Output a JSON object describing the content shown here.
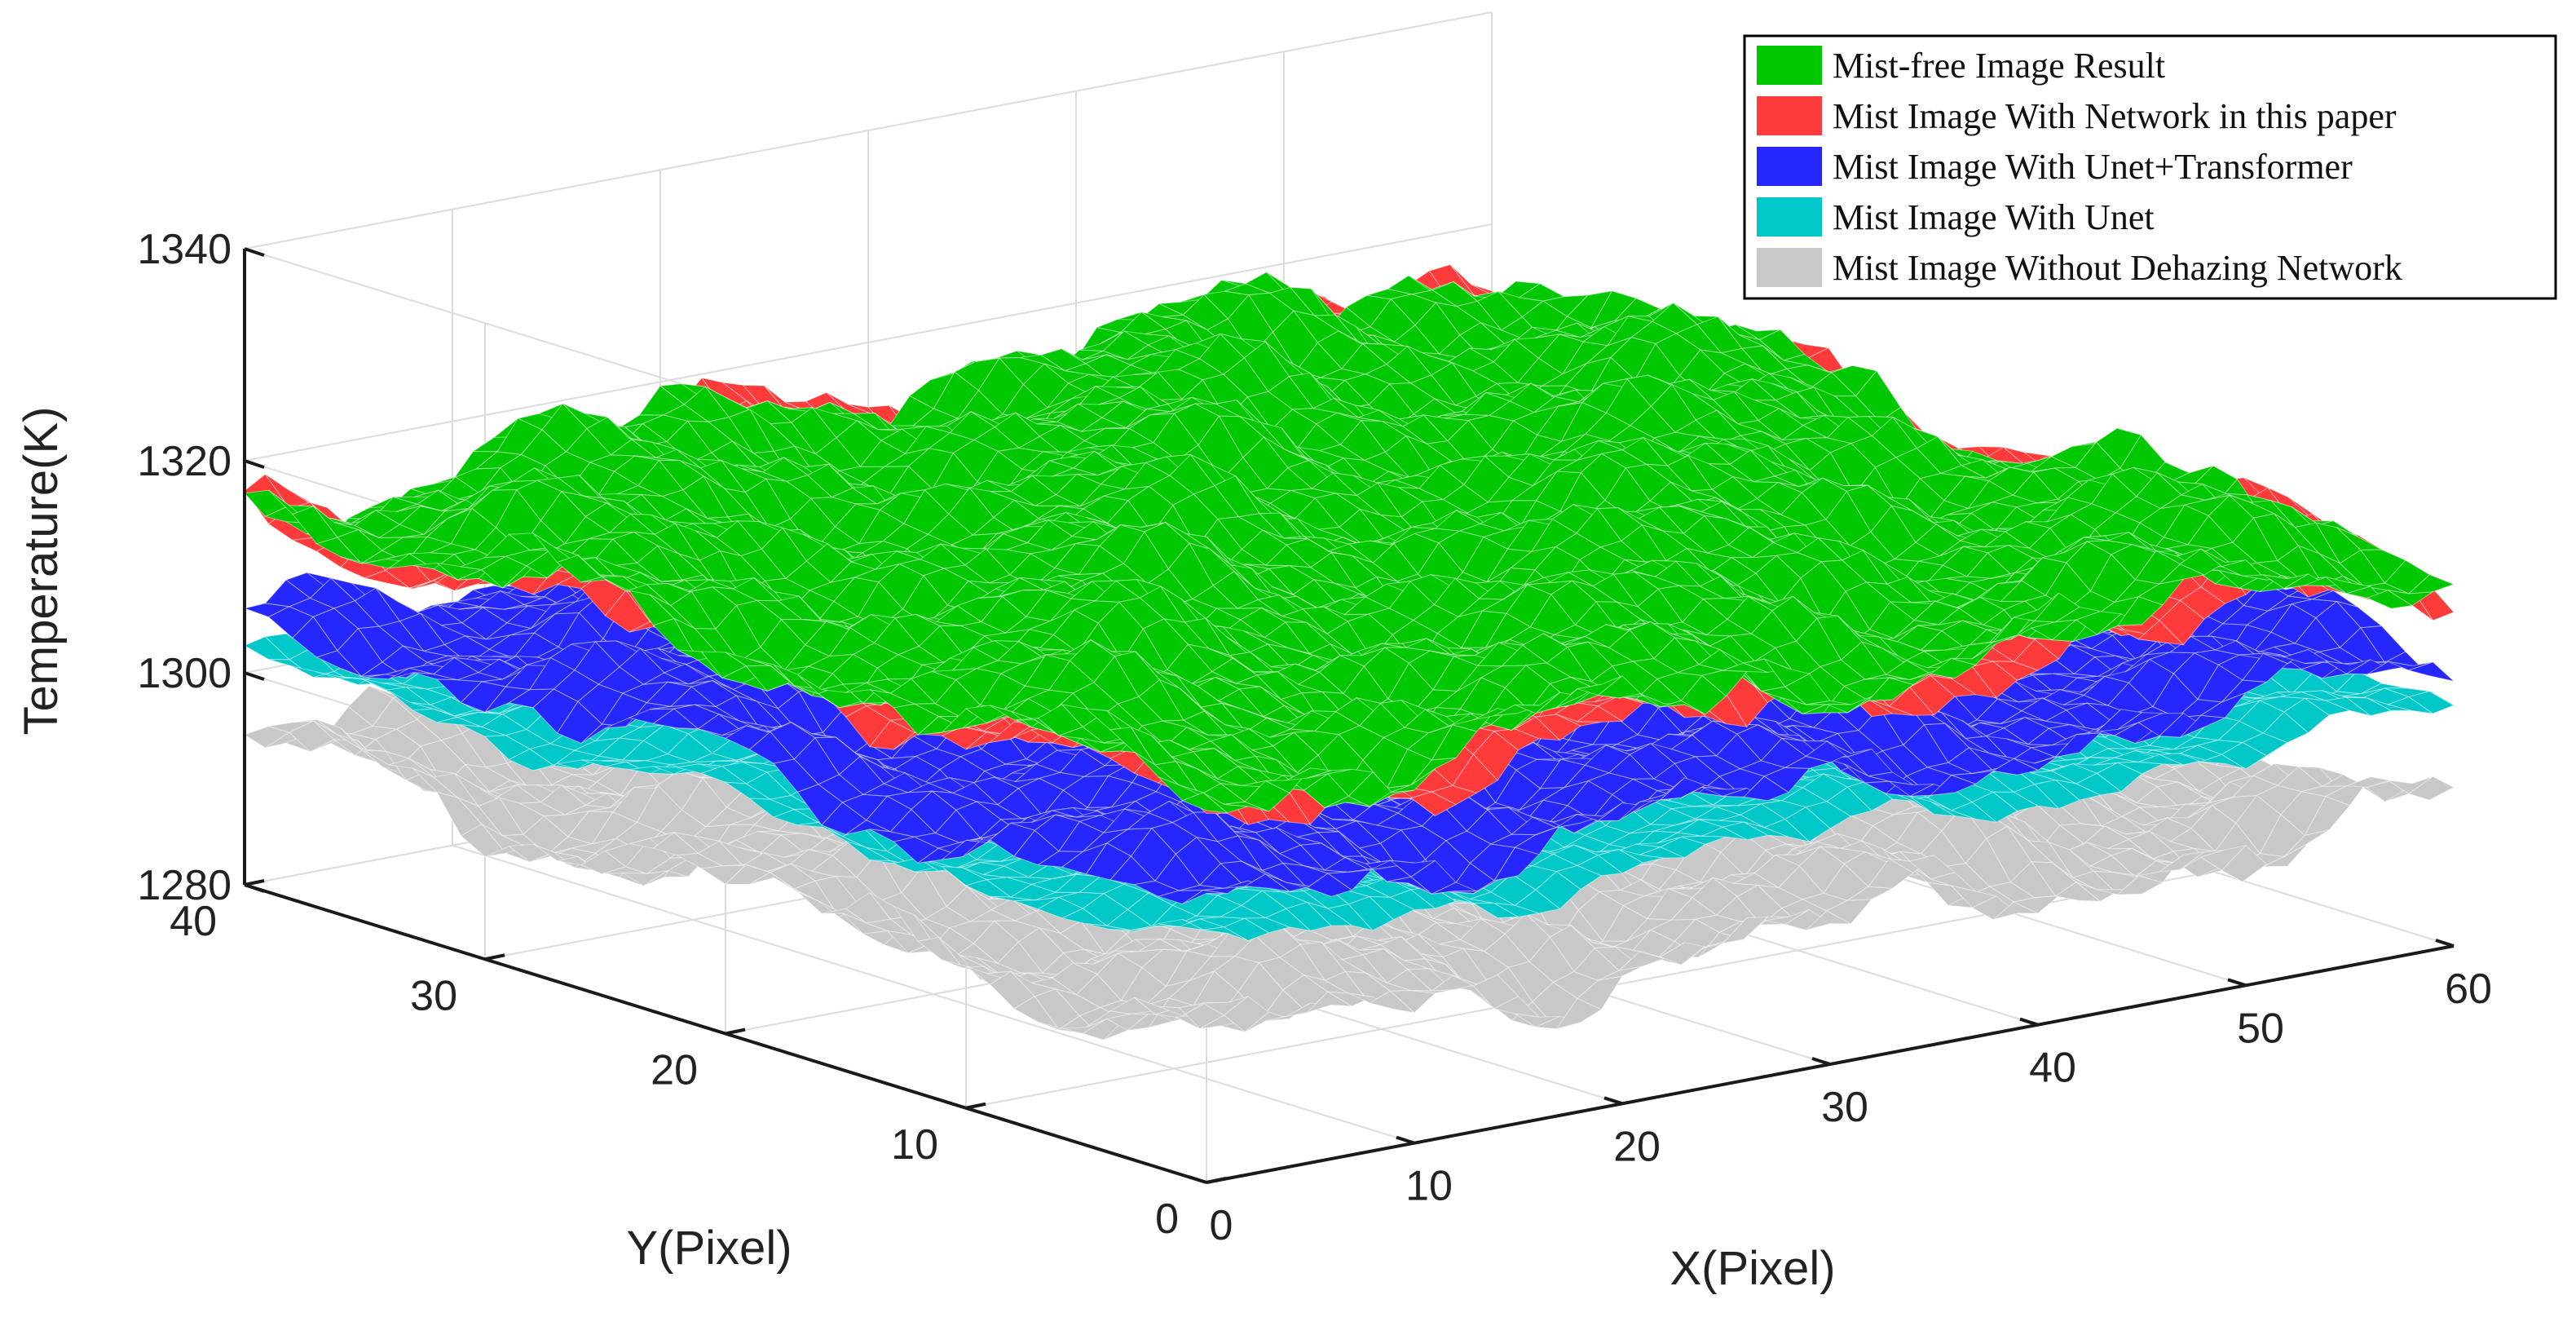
{
  "chart_data": {
    "type": "surface",
    "title": "",
    "xlabel": "X(Pixel)",
    "ylabel": "Y(Pixel)",
    "zlabel": "Temperature(K)",
    "xlim": [
      0,
      60
    ],
    "ylim": [
      0,
      40
    ],
    "zlim": [
      1280,
      1340
    ],
    "x_ticks": [
      "0",
      "10",
      "20",
      "30",
      "40",
      "50",
      "60"
    ],
    "y_ticks": [
      "0",
      "10",
      "20",
      "30",
      "40"
    ],
    "z_ticks": [
      "1280",
      "1300",
      "1320",
      "1340"
    ],
    "grid": true,
    "legend_position": "top-right",
    "series": [
      {
        "name": "Mist Image Without Dehazing Network",
        "color": "#c8c8c8",
        "mean_temperature": 1293,
        "variation": 4.5
      },
      {
        "name": "Mist Image With Unet",
        "color": "#00c8c8",
        "mean_temperature": 1302,
        "variation": 2.5
      },
      {
        "name": "Mist Image With Unet+Transformer",
        "color": "#2626ff",
        "mean_temperature": 1306,
        "variation": 4
      },
      {
        "name": "Mist Image With Network in this paper",
        "color": "#ff3a3a",
        "mean_temperature": 1315,
        "variation": 4
      },
      {
        "name": "Mist-free Image Result",
        "color": "#00c800",
        "mean_temperature": 1316,
        "variation": 4.5
      }
    ],
    "legend_order": [
      4,
      3,
      2,
      1,
      0
    ]
  }
}
